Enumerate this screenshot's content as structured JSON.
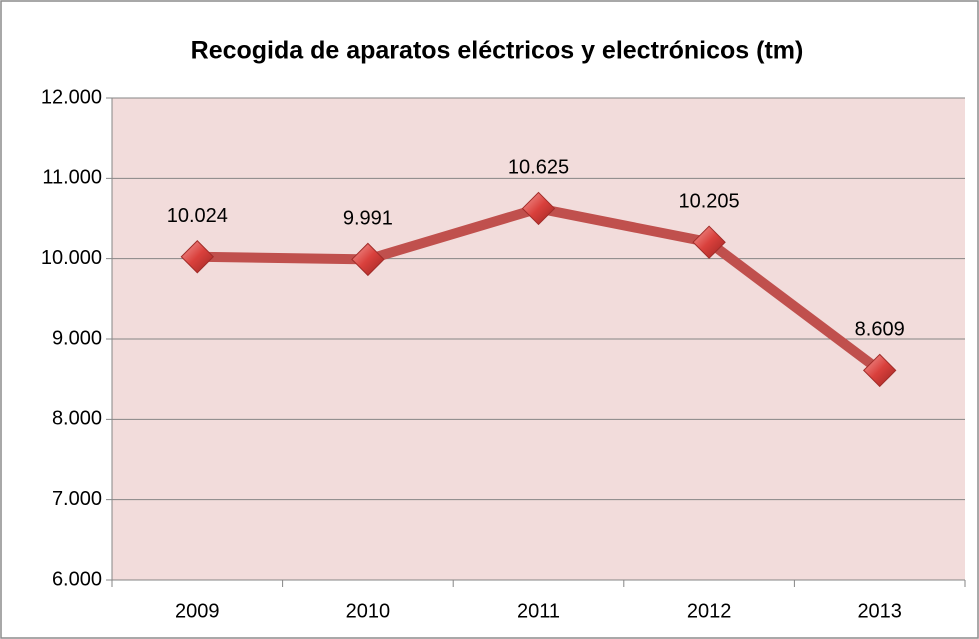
{
  "chart_data": {
    "type": "line",
    "title": "Recogida de aparatos eléctricos y electrónicos (tm)",
    "categories": [
      "2009",
      "2010",
      "2011",
      "2012",
      "2013"
    ],
    "values": [
      10024,
      9991,
      10625,
      10205,
      8609
    ],
    "value_labels": [
      "10.024",
      "9.991",
      "10.625",
      "10.205",
      "8.609"
    ],
    "color": "#c0504d",
    "ylim": [
      6000,
      12000
    ],
    "yticks": [
      {
        "value": 6000,
        "label": "6.000"
      },
      {
        "value": 7000,
        "label": "7.000"
      },
      {
        "value": 8000,
        "label": "8.000"
      },
      {
        "value": 9000,
        "label": "9.000"
      },
      {
        "value": 10000,
        "label": "10.000"
      },
      {
        "value": 11000,
        "label": "11.000"
      },
      {
        "value": 12000,
        "label": "12.000"
      }
    ],
    "grid": true
  }
}
